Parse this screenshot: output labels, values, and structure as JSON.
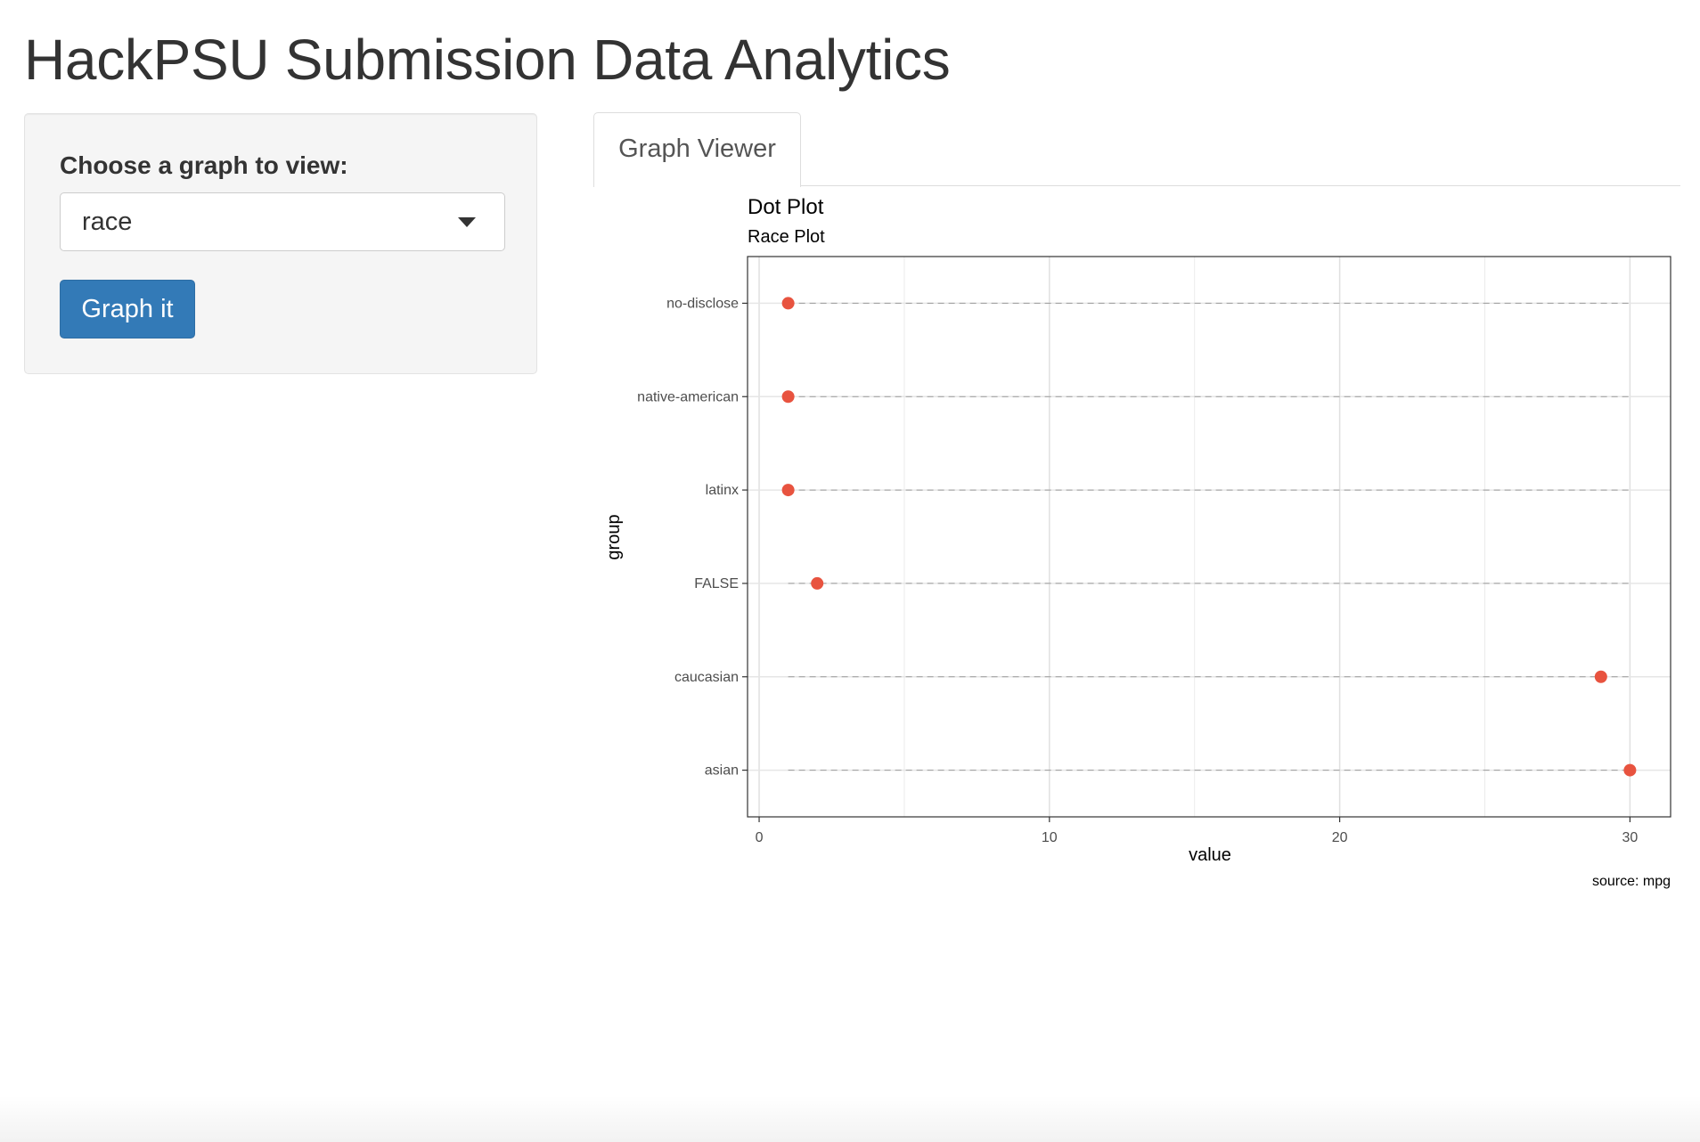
{
  "header": {
    "title": "HackPSU Submission Data Analytics"
  },
  "sidebar": {
    "label": "Choose a graph to view:",
    "select_value": "race",
    "button_label": "Graph it"
  },
  "tabs": [
    {
      "label": "Graph Viewer",
      "active": true
    }
  ],
  "colors": {
    "point": "#e8533f",
    "primary": "#337ab7"
  },
  "chart_data": {
    "type": "scatter",
    "title": "Dot Plot",
    "subtitle": "Race Plot",
    "xlabel": "value",
    "ylabel": "group",
    "caption": "source: mpg",
    "categories": [
      "no-disclose",
      "native-american",
      "latinx",
      "FALSE",
      "caucasian",
      "asian"
    ],
    "values": [
      1,
      1,
      1,
      2,
      29,
      30
    ],
    "x_ticks": [
      0,
      10,
      20,
      30
    ],
    "xlim": [
      -0.4,
      31.4
    ],
    "grid": true,
    "legend": "none"
  }
}
